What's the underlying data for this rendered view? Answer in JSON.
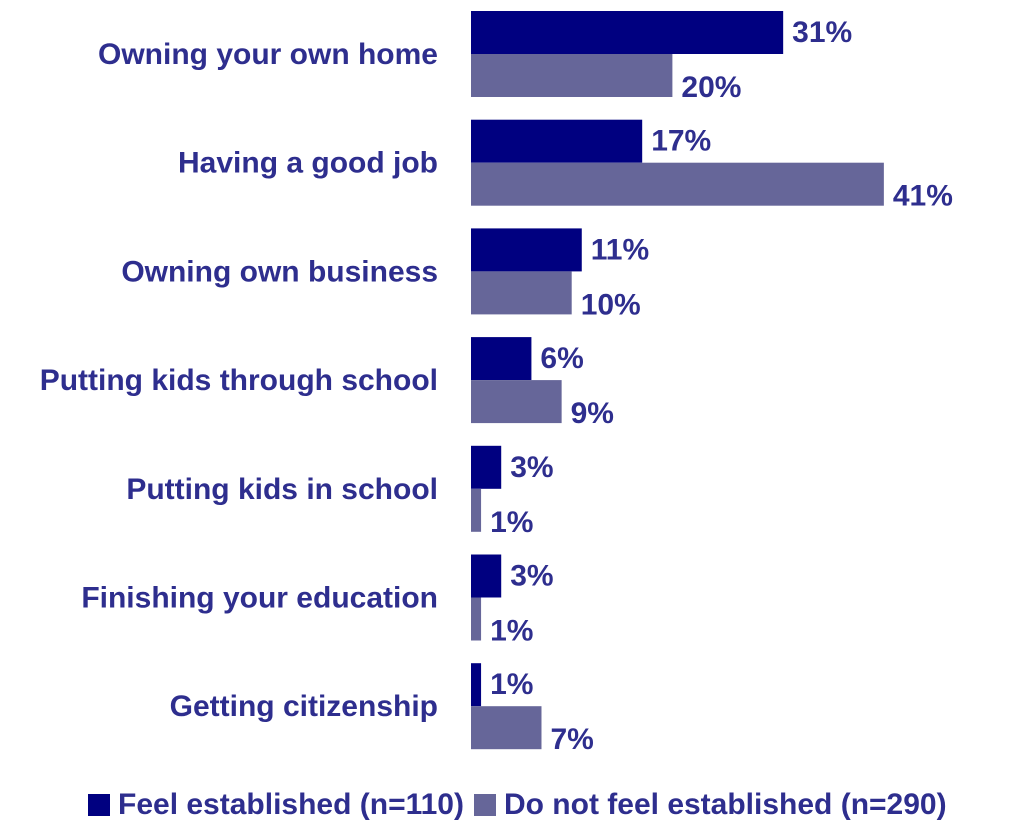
{
  "chart_data": {
    "type": "bar",
    "orientation": "horizontal",
    "categories": [
      "Owning your own home",
      "Having a good job",
      "Owning own business",
      "Putting kids through school",
      "Putting kids in school",
      "Finishing your education",
      "Getting citizenship"
    ],
    "series": [
      {
        "name": "Feel established (n=110)",
        "color": "#000080",
        "values": [
          31,
          17,
          11,
          6,
          3,
          3,
          1
        ],
        "labels": [
          "31%",
          "17%",
          "11%",
          "6%",
          "3%",
          "3%",
          "1%"
        ]
      },
      {
        "name": "Do not feel established (n=290)",
        "color": "#666699",
        "values": [
          20,
          41,
          10,
          9,
          1,
          1,
          7
        ],
        "labels": [
          "20%",
          "41%",
          "10%",
          "9%",
          "1%",
          "1%",
          "7%"
        ]
      }
    ],
    "title": "",
    "xlabel": "",
    "ylabel": "",
    "xlim": [
      0,
      41
    ],
    "grid": false,
    "legend_position": "bottom"
  }
}
